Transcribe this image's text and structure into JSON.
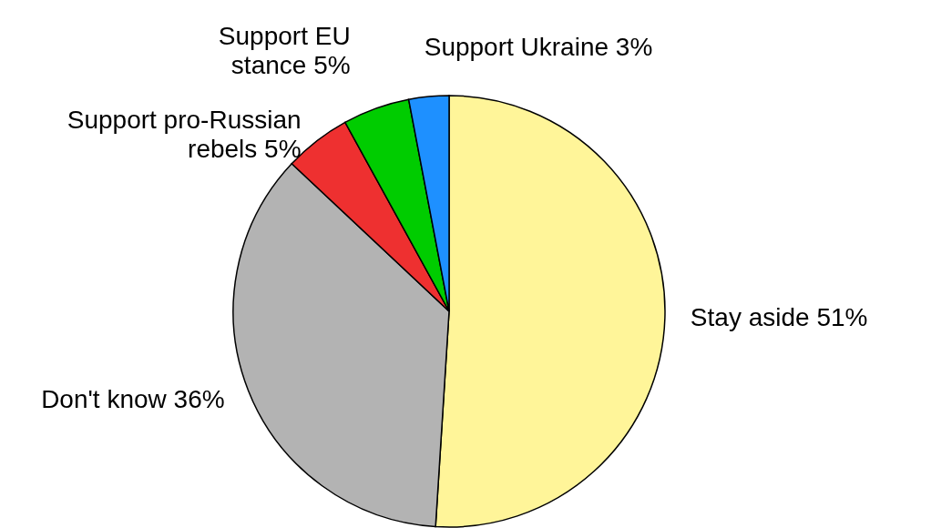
{
  "chart_data": {
    "type": "pie",
    "categories": [
      "Stay aside",
      "Don't know",
      "Support pro-Russian rebels",
      "Support EU stance",
      "Support Ukraine"
    ],
    "values": [
      51,
      36,
      5,
      5,
      3
    ],
    "colors": [
      "#fff599",
      "#b3b3b3",
      "#ee3030",
      "#00cc00",
      "#1e90ff"
    ],
    "value_labels": [
      "51%",
      "36%",
      "5%",
      "5%",
      "3%"
    ]
  }
}
